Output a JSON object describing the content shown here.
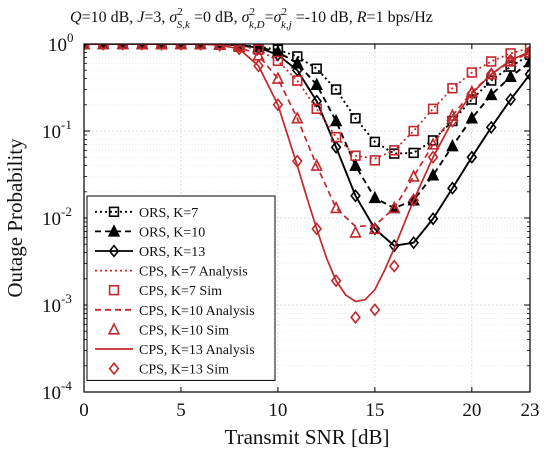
{
  "chart_data": {
    "type": "line",
    "title": "Q=10 dB, J=3, σ²S,k=0 dB, σ²k,D=σ²k,j=-10 dB, R=1 bps/Hz",
    "title_parts": {
      "q": "Q",
      "q_val": "=10 dB, ",
      "j": "J",
      "j_val": "=3, ",
      "sigma": "σ",
      "sup1": "2",
      "sub1": "S,k",
      "mid": " =0 dB, ",
      "sup2": "2",
      "sub2": "k,D",
      "eq": "=",
      "sup3": "2",
      "sub3": "k,j",
      "tail": " =-10 dB, ",
      "r": "R",
      "r_val": "=1 bps/Hz"
    },
    "xlabel": "Transmit SNR [dB]",
    "ylabel": "Outage Probability",
    "xlim": [
      0,
      23
    ],
    "ylim": [
      0.0001,
      1
    ],
    "yscale": "log",
    "grid": true,
    "xticks": [
      0,
      5,
      10,
      15,
      20,
      23
    ],
    "xtick_labels": [
      "0",
      "5",
      "10",
      "15",
      "20",
      "23"
    ],
    "yticks": [
      0.0001,
      0.001,
      0.01,
      0.1,
      1
    ],
    "ytick_labels": [
      {
        "base": "10",
        "exp": "-4"
      },
      {
        "base": "10",
        "exp": "-3"
      },
      {
        "base": "10",
        "exp": "-2"
      },
      {
        "base": "10",
        "exp": "-1"
      },
      {
        "base": "10",
        "exp": "0"
      }
    ],
    "legend_position": "lower-left",
    "legend": [
      "ORS, K=7",
      "ORS, K=10",
      "ORS, K=13",
      "CPS, K=7 Analysis",
      "CPS, K=7 Sim",
      "CPS, K=10 Analysis",
      "CPS, K=10 Sim",
      "CPS, K=13 Analysis",
      "CPS, K=13 Sim"
    ],
    "series": [
      {
        "name": "ORS, K=7",
        "color": "#000000",
        "line": "dotted",
        "marker": "square",
        "x": [
          0,
          1,
          2,
          3,
          4,
          5,
          6,
          7,
          8,
          9,
          10,
          11,
          12,
          13,
          14,
          15,
          16,
          17,
          18,
          19,
          20,
          21,
          22,
          23
        ],
        "y": [
          1,
          1,
          1,
          1,
          1,
          1,
          1,
          1,
          0.97,
          0.93,
          0.86,
          0.72,
          0.52,
          0.3,
          0.14,
          0.075,
          0.055,
          0.056,
          0.078,
          0.13,
          0.23,
          0.38,
          0.55,
          0.75
        ]
      },
      {
        "name": "ORS, K=10",
        "color": "#000000",
        "line": "dashed",
        "marker": "triangle",
        "x": [
          0,
          1,
          2,
          3,
          4,
          5,
          6,
          7,
          8,
          9,
          10,
          11,
          12,
          13,
          14,
          15,
          16,
          17,
          18,
          19,
          20,
          21,
          22,
          23
        ],
        "y": [
          1,
          1,
          1,
          1,
          1,
          1,
          1,
          1,
          0.97,
          0.92,
          0.81,
          0.6,
          0.34,
          0.13,
          0.04,
          0.017,
          0.013,
          0.016,
          0.031,
          0.067,
          0.14,
          0.26,
          0.42,
          0.62
        ]
      },
      {
        "name": "ORS, K=13",
        "color": "#000000",
        "line": "solid",
        "marker": "diamond",
        "x": [
          0,
          1,
          2,
          3,
          4,
          5,
          6,
          7,
          8,
          9,
          10,
          11,
          12,
          13,
          14,
          15,
          16,
          17,
          18,
          19,
          20,
          21,
          22,
          23
        ],
        "y": [
          1,
          1,
          1,
          1,
          1,
          1,
          1,
          1,
          0.96,
          0.91,
          0.75,
          0.5,
          0.22,
          0.065,
          0.018,
          0.0075,
          0.0048,
          0.0052,
          0.0098,
          0.022,
          0.05,
          0.11,
          0.23,
          0.45
        ]
      },
      {
        "name": "CPS, K=7 Analysis",
        "color": "#c0282c",
        "line": "dotted",
        "marker": "none",
        "x": [
          0,
          2,
          4,
          6,
          7,
          8,
          9,
          10,
          11,
          12,
          13,
          14,
          15,
          16,
          17,
          18,
          19,
          20,
          21,
          22,
          23
        ],
        "y": [
          1,
          1,
          1,
          0.999,
          0.99,
          0.96,
          0.86,
          0.64,
          0.38,
          0.18,
          0.085,
          0.052,
          0.048,
          0.06,
          0.1,
          0.18,
          0.31,
          0.47,
          0.63,
          0.78,
          0.9
        ]
      },
      {
        "name": "CPS, K=7 Sim",
        "color": "#c0282c",
        "line": "none",
        "marker": "square",
        "x": [
          0,
          1,
          2,
          3,
          4,
          5,
          6,
          7,
          8,
          9,
          10,
          11,
          12,
          13,
          14,
          15,
          16,
          17,
          18,
          19,
          20,
          21,
          22,
          23
        ],
        "y": [
          1,
          1,
          1,
          1,
          1,
          1,
          1,
          0.99,
          0.96,
          0.86,
          0.64,
          0.38,
          0.18,
          0.085,
          0.052,
          0.046,
          0.06,
          0.1,
          0.18,
          0.31,
          0.47,
          0.63,
          0.78,
          0.9
        ]
      },
      {
        "name": "CPS, K=10 Analysis",
        "color": "#c0282c",
        "line": "dashed",
        "marker": "none",
        "x": [
          0,
          2,
          4,
          6,
          7,
          8,
          9,
          10,
          11,
          12,
          13,
          14,
          15,
          16,
          17,
          18,
          19,
          20,
          21,
          22,
          23
        ],
        "y": [
          1,
          1,
          1,
          0.999,
          0.98,
          0.93,
          0.74,
          0.4,
          0.14,
          0.04,
          0.013,
          0.008,
          0.0082,
          0.013,
          0.03,
          0.07,
          0.15,
          0.28,
          0.45,
          0.63,
          0.8
        ]
      },
      {
        "name": "CPS, K=10 Sim",
        "color": "#c0282c",
        "line": "none",
        "marker": "triangle",
        "x": [
          0,
          1,
          2,
          3,
          4,
          5,
          6,
          7,
          8,
          9,
          10,
          11,
          12,
          13,
          14,
          15,
          16,
          17,
          18,
          19,
          20,
          21,
          22,
          23
        ],
        "y": [
          1,
          1,
          1,
          1,
          1,
          1,
          1,
          0.98,
          0.93,
          0.74,
          0.4,
          0.14,
          0.04,
          0.013,
          0.0068,
          0.0075,
          0.013,
          0.03,
          0.07,
          0.15,
          0.28,
          0.45,
          0.63,
          0.8
        ]
      },
      {
        "name": "CPS, K=13 Analysis",
        "color": "#c0282c",
        "line": "solid",
        "marker": "none",
        "x": [
          0,
          2,
          4,
          6,
          7,
          8,
          9,
          10,
          11,
          11.5,
          12,
          12.5,
          13,
          13.5,
          14,
          14.5,
          15,
          15.5,
          16,
          17,
          18,
          19,
          20,
          21,
          22,
          23
        ],
        "y": [
          1,
          1,
          1,
          0.999,
          0.97,
          0.88,
          0.56,
          0.2,
          0.04,
          0.017,
          0.0075,
          0.0035,
          0.0019,
          0.0013,
          0.0011,
          0.00115,
          0.0015,
          0.0025,
          0.0045,
          0.016,
          0.05,
          0.13,
          0.27,
          0.45,
          0.65,
          0.82
        ]
      },
      {
        "name": "CPS, K=13 Sim",
        "color": "#c0282c",
        "line": "none",
        "marker": "diamond",
        "x": [
          0,
          1,
          2,
          3,
          4,
          5,
          6,
          7,
          8,
          9,
          10,
          11,
          12,
          13,
          14,
          15,
          16,
          17,
          18,
          19,
          20,
          21,
          22,
          23
        ],
        "y": [
          1,
          1,
          1,
          1,
          1,
          1,
          1,
          0.97,
          0.88,
          0.56,
          0.2,
          0.045,
          0.0075,
          0.0019,
          0.00072,
          0.00088,
          0.0028,
          0.016,
          0.05,
          0.13,
          0.27,
          0.45,
          0.65,
          0.82
        ]
      }
    ]
  }
}
